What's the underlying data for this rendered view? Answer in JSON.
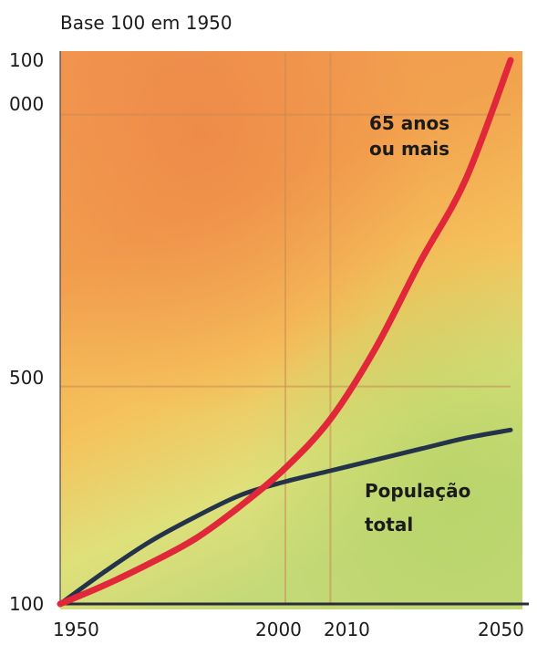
{
  "chart_data": {
    "type": "line",
    "title": "Base 100 em 1950",
    "x_ticks": [
      "1950",
      "2000",
      "2010",
      "2050"
    ],
    "y_ticks": [
      "100",
      "500",
      "1 000"
    ],
    "y_tick_top_lines": [
      "100",
      "000"
    ],
    "xlim": [
      1950,
      2050
    ],
    "ylim": [
      100,
      1100
    ],
    "grid": true,
    "series": [
      {
        "name": "65 anos ou mais",
        "label_lines": [
          "65 anos",
          "ou mais"
        ],
        "color": "#e0283a",
        "x": [
          1950,
          1960,
          1970,
          1980,
          1990,
          2000,
          2010,
          2020,
          2030,
          2040,
          2050
        ],
        "y": [
          100,
          135,
          175,
          220,
          280,
          350,
          440,
          570,
          730,
          880,
          1100
        ]
      },
      {
        "name": "População total",
        "label_lines": [
          "População",
          "total"
        ],
        "color": "#24324a",
        "x": [
          1950,
          1960,
          1970,
          1980,
          1990,
          2000,
          2010,
          2020,
          2030,
          2040,
          2050
        ],
        "y": [
          100,
          160,
          215,
          260,
          300,
          325,
          345,
          365,
          385,
          405,
          420
        ]
      }
    ],
    "colors": {
      "background_top": "#f0a04a",
      "background_mid": "#f3c05a",
      "background_bottom": "#cfe07a",
      "axis": "#2a2a3a"
    }
  }
}
